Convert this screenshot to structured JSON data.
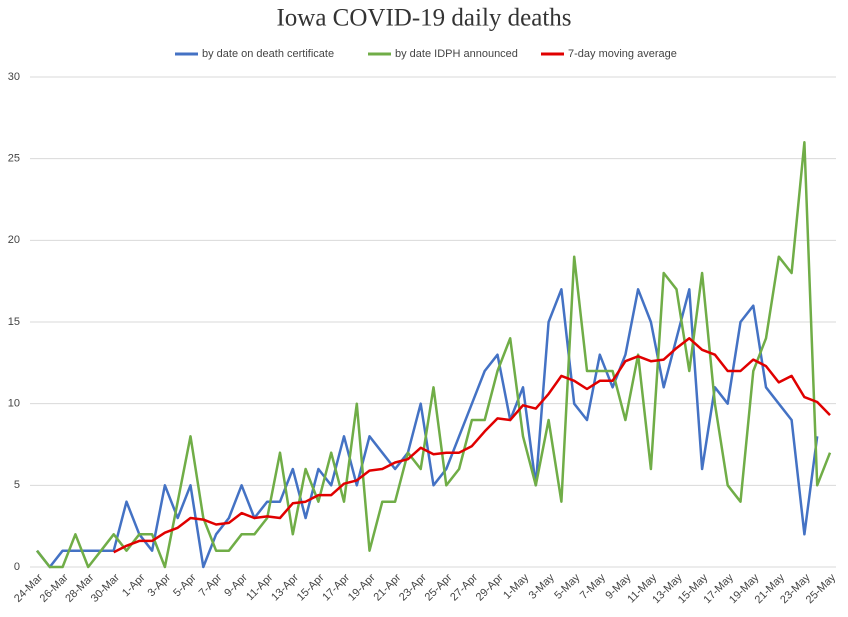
{
  "chart_data": {
    "type": "line",
    "title": "Iowa COVID-19 daily deaths",
    "categories": [
      "24-Mar",
      null,
      "26-Mar",
      null,
      "28-Mar",
      null,
      "30-Mar",
      null,
      "1-Apr",
      null,
      "3-Apr",
      null,
      "5-Apr",
      null,
      "7-Apr",
      null,
      "9-Apr",
      null,
      "11-Apr",
      null,
      "13-Apr",
      null,
      "15-Apr",
      null,
      "17-Apr",
      null,
      "19-Apr",
      null,
      "21-Apr",
      null,
      "23-Apr",
      null,
      "25-Apr",
      null,
      "27-Apr",
      null,
      "29-Apr",
      null,
      "1-May",
      null,
      "3-May",
      null,
      "5-May",
      null,
      "7-May",
      null,
      "9-May",
      null,
      "11-May",
      null,
      "13-May",
      null,
      "15-May",
      null,
      "17-May",
      null,
      "19-May",
      null,
      "21-May",
      null,
      "23-May",
      null,
      "25-May"
    ],
    "series": [
      {
        "name": "by date on death certificate",
        "color": "#4472c4",
        "values": [
          1,
          0,
          1,
          1,
          1,
          1,
          1,
          4,
          2,
          1,
          5,
          3,
          5,
          0,
          2,
          3,
          5,
          3,
          4,
          4,
          6,
          3,
          6,
          5,
          8,
          5,
          8,
          7,
          6,
          7,
          10,
          5,
          6,
          8,
          10,
          12,
          13,
          9,
          11,
          5,
          15,
          17,
          10,
          9,
          13,
          11,
          13,
          17,
          15,
          11,
          14,
          17,
          6,
          11,
          10,
          15,
          16,
          11,
          10,
          9,
          2,
          8,
          null
        ]
      },
      {
        "name": "by date IDPH announced",
        "color": "#70ad47",
        "values": [
          1,
          0,
          0,
          2,
          0,
          1,
          2,
          1,
          2,
          2,
          0,
          4,
          8,
          3,
          1,
          1,
          2,
          2,
          3,
          7,
          2,
          6,
          4,
          7,
          4,
          10,
          1,
          4,
          4,
          7,
          6,
          11,
          5,
          6,
          9,
          9,
          12,
          14,
          8,
          5,
          9,
          4,
          19,
          12,
          12,
          12,
          9,
          13,
          6,
          18,
          17,
          12,
          18,
          10,
          5,
          4,
          12,
          14,
          19,
          18,
          26,
          5,
          7
        ]
      },
      {
        "name": "7-day moving average",
        "color": "#e00000",
        "values": [
          null,
          null,
          null,
          null,
          null,
          null,
          0.9,
          1.3,
          1.6,
          1.6,
          2.1,
          2.4,
          3.0,
          2.9,
          2.6,
          2.7,
          3.3,
          3.0,
          3.1,
          3.0,
          3.9,
          4.0,
          4.4,
          4.4,
          5.1,
          5.3,
          5.9,
          6.0,
          6.4,
          6.6,
          7.3,
          6.9,
          7.0,
          7.0,
          7.4,
          8.3,
          9.1,
          9.0,
          9.9,
          9.7,
          10.6,
          11.7,
          11.4,
          10.9,
          11.4,
          11.4,
          12.6,
          12.9,
          12.6,
          12.7,
          13.4,
          14.0,
          13.3,
          13.0,
          12.0,
          12.0,
          12.7,
          12.3,
          11.3,
          11.7,
          10.4,
          10.1,
          9.3
        ]
      }
    ],
    "ylim": [
      0,
      30
    ],
    "yticks": [
      0,
      5,
      10,
      15,
      20,
      25,
      30
    ],
    "grid": true,
    "legend": "top"
  }
}
